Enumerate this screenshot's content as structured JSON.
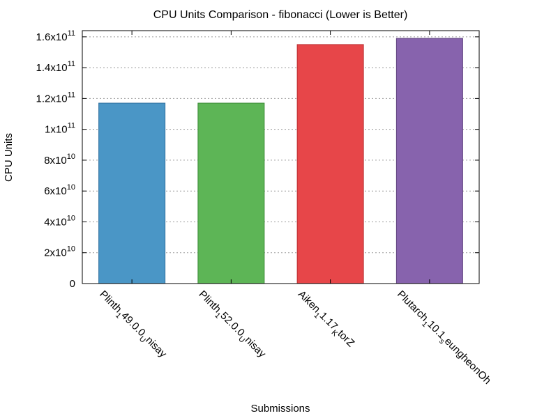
{
  "chart_data": {
    "type": "bar",
    "title": "CPU Units Comparison - fibonacci (Lower is Better)",
    "xlabel": "Submissions",
    "ylabel": "CPU Units",
    "ylim": [
      0,
      164000000000
    ],
    "grid": true,
    "yticks": [
      {
        "value": 0,
        "base": "0",
        "exp": ""
      },
      {
        "value": 20000000000,
        "base": "2x10",
        "exp": "10"
      },
      {
        "value": 40000000000,
        "base": "4x10",
        "exp": "10"
      },
      {
        "value": 60000000000,
        "base": "6x10",
        "exp": "10"
      },
      {
        "value": 80000000000,
        "base": "8x10",
        "exp": "10"
      },
      {
        "value": 100000000000,
        "base": "1x10",
        "exp": "11"
      },
      {
        "value": 120000000000,
        "base": "1.2x10",
        "exp": "11"
      },
      {
        "value": 140000000000,
        "base": "1.4x10",
        "exp": "11"
      },
      {
        "value": 160000000000,
        "base": "1.6x10",
        "exp": "11"
      }
    ],
    "categories": [
      {
        "parts": [
          {
            "t": "Plinth",
            "sub": false
          },
          {
            "t": "1",
            "sub": true
          },
          {
            "t": "49.0.0",
            "sub": false
          },
          {
            "t": "U",
            "sub": true
          },
          {
            "t": "nisay",
            "sub": false
          }
        ]
      },
      {
        "parts": [
          {
            "t": "Plinth",
            "sub": false
          },
          {
            "t": "1",
            "sub": true
          },
          {
            "t": "52.0.0",
            "sub": false
          },
          {
            "t": "U",
            "sub": true
          },
          {
            "t": "nisay",
            "sub": false
          }
        ]
      },
      {
        "parts": [
          {
            "t": "Aiken",
            "sub": false
          },
          {
            "t": "1",
            "sub": true
          },
          {
            "t": "1.17",
            "sub": false
          },
          {
            "t": "K",
            "sub": true
          },
          {
            "t": "torZ",
            "sub": false
          }
        ]
      },
      {
        "parts": [
          {
            "t": "Plutarch",
            "sub": false
          },
          {
            "t": "1",
            "sub": true
          },
          {
            "t": "10.1",
            "sub": false
          },
          {
            "t": "s",
            "sub": true
          },
          {
            "t": "eungheonOh",
            "sub": false
          }
        ]
      }
    ],
    "values": [
      117000000000,
      117000000000,
      155000000000,
      159000000000
    ],
    "colors": [
      "#4a96c6",
      "#5db556",
      "#e74649",
      "#8763ad"
    ],
    "border_colors": [
      "#2f6f9e",
      "#3c8a37",
      "#b82f31",
      "#5f437f"
    ]
  }
}
